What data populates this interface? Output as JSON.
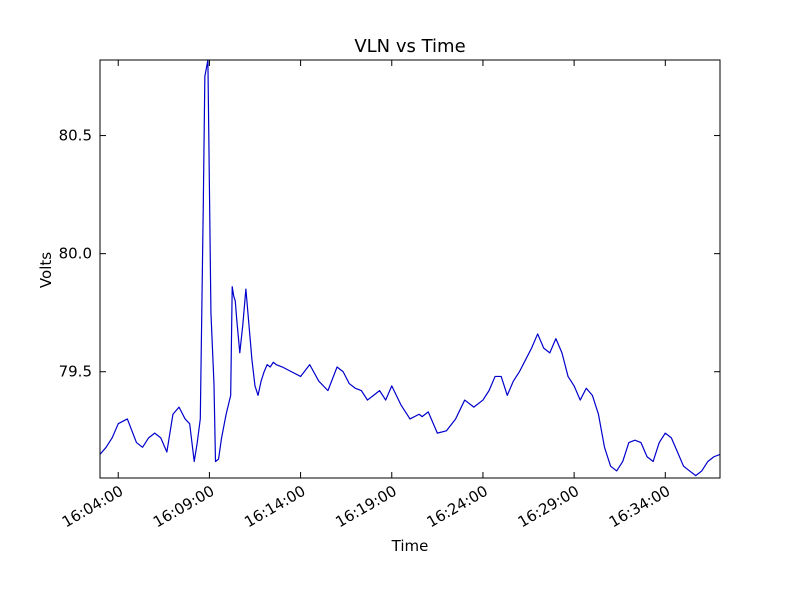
{
  "chart_data": {
    "type": "line",
    "title": "VLN vs Time",
    "xlabel": "Time",
    "ylabel": "Volts",
    "x_unit": "time of day (HH:MM:SS)",
    "xlim": [
      "16:03:00",
      "16:37:00"
    ],
    "ylim": [
      79.05,
      80.82
    ],
    "x_ticks": [
      "16:04:00",
      "16:09:00",
      "16:14:00",
      "16:19:00",
      "16:24:00",
      "16:29:00",
      "16:34:00"
    ],
    "y_ticks": [
      79.5,
      80.0,
      80.5
    ],
    "y_tick_labels": [
      "79.5",
      "80.0",
      "80.5"
    ],
    "grid": false,
    "legend": "none",
    "series": [
      {
        "color": "#0000cc",
        "x": [
          "16:03:00",
          "16:03:20",
          "16:03:40",
          "16:04:00",
          "16:04:30",
          "16:05:00",
          "16:05:20",
          "16:05:40",
          "16:06:00",
          "16:06:20",
          "16:06:40",
          "16:07:00",
          "16:07:20",
          "16:07:40",
          "16:07:55",
          "16:08:10",
          "16:08:20",
          "16:08:30",
          "16:08:40",
          "16:08:45",
          "16:08:55",
          "16:09:05",
          "16:09:15",
          "16:09:20",
          "16:09:30",
          "16:09:40",
          "16:09:55",
          "16:10:10",
          "16:10:15",
          "16:10:20",
          "16:10:25",
          "16:10:30",
          "16:10:40",
          "16:10:50",
          "16:11:00",
          "16:11:10",
          "16:11:20",
          "16:11:30",
          "16:11:40",
          "16:11:50",
          "16:12:00",
          "16:12:10",
          "16:12:20",
          "16:12:30",
          "16:12:40",
          "16:13:00",
          "16:13:30",
          "16:14:00",
          "16:14:30",
          "16:15:00",
          "16:15:30",
          "16:16:00",
          "16:16:20",
          "16:16:40",
          "16:17:00",
          "16:17:20",
          "16:17:40",
          "16:18:00",
          "16:18:20",
          "16:18:40",
          "16:19:00",
          "16:19:30",
          "16:20:00",
          "16:20:30",
          "16:20:40",
          "16:21:00",
          "16:21:30",
          "16:22:00",
          "16:22:30",
          "16:23:00",
          "16:23:30",
          "16:24:00",
          "16:24:20",
          "16:24:40",
          "16:25:00",
          "16:25:20",
          "16:25:40",
          "16:26:00",
          "16:26:20",
          "16:26:40",
          "16:27:00",
          "16:27:20",
          "16:27:40",
          "16:28:00",
          "16:28:20",
          "16:28:40",
          "16:29:00",
          "16:29:20",
          "16:29:40",
          "16:30:00",
          "16:30:20",
          "16:30:40",
          "16:31:00",
          "16:31:20",
          "16:31:40",
          "16:32:00",
          "16:32:20",
          "16:32:40",
          "16:33:00",
          "16:33:20",
          "16:33:40",
          "16:34:00",
          "16:34:20",
          "16:34:40",
          "16:35:00",
          "16:35:20",
          "16:35:40",
          "16:36:00",
          "16:36:20",
          "16:36:40",
          "16:37:00"
        ],
        "y": [
          79.15,
          79.18,
          79.22,
          79.28,
          79.3,
          79.2,
          79.18,
          79.22,
          79.24,
          79.22,
          79.16,
          79.32,
          79.35,
          79.3,
          79.28,
          79.12,
          79.2,
          79.3,
          80.22,
          80.75,
          80.82,
          79.75,
          79.45,
          79.12,
          79.13,
          79.22,
          79.32,
          79.4,
          79.86,
          79.82,
          79.8,
          79.72,
          79.58,
          79.7,
          79.85,
          79.7,
          79.55,
          79.44,
          79.4,
          79.46,
          79.5,
          79.53,
          79.52,
          79.54,
          79.53,
          79.52,
          79.5,
          79.48,
          79.53,
          79.46,
          79.42,
          79.52,
          79.5,
          79.45,
          79.43,
          79.42,
          79.38,
          79.4,
          79.42,
          79.38,
          79.44,
          79.36,
          79.3,
          79.32,
          79.31,
          79.33,
          79.24,
          79.25,
          79.3,
          79.38,
          79.35,
          79.38,
          79.42,
          79.48,
          79.48,
          79.4,
          79.46,
          79.5,
          79.55,
          79.6,
          79.66,
          79.6,
          79.58,
          79.64,
          79.58,
          79.48,
          79.44,
          79.38,
          79.43,
          79.4,
          79.32,
          79.18,
          79.1,
          79.08,
          79.12,
          79.2,
          79.21,
          79.2,
          79.14,
          79.12,
          79.2,
          79.24,
          79.22,
          79.16,
          79.1,
          79.08,
          79.06,
          79.08,
          79.12,
          79.14,
          79.15
        ]
      }
    ]
  }
}
